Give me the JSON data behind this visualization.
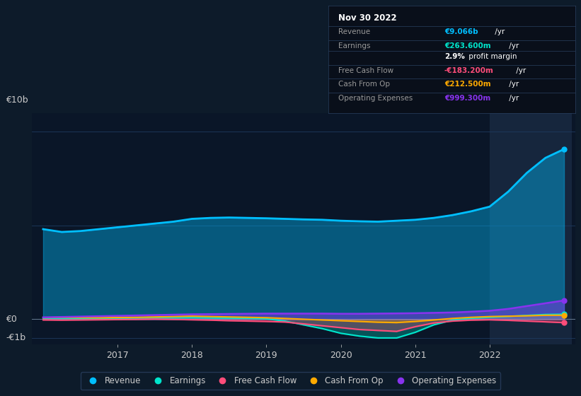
{
  "bg_color": "#0d1b2a",
  "plot_bg_color": "#0a1628",
  "text_color": "#cccccc",
  "ylabel_10b": "€10b",
  "ylabel_0": "€0",
  "ylabel_neg1b": "-€1b",
  "highlight_x_start": 2022.0,
  "highlight_x_end": 2023.1,
  "x_years": [
    2016.0,
    2016.25,
    2016.5,
    2016.75,
    2017.0,
    2017.25,
    2017.5,
    2017.75,
    2018.0,
    2018.25,
    2018.5,
    2018.75,
    2019.0,
    2019.25,
    2019.5,
    2019.75,
    2020.0,
    2020.25,
    2020.5,
    2020.75,
    2021.0,
    2021.25,
    2021.5,
    2021.75,
    2022.0,
    2022.25,
    2022.5,
    2022.75,
    2023.0
  ],
  "revenue": [
    4.8,
    4.65,
    4.7,
    4.8,
    4.9,
    5.0,
    5.1,
    5.2,
    5.35,
    5.4,
    5.42,
    5.4,
    5.38,
    5.35,
    5.32,
    5.3,
    5.25,
    5.22,
    5.2,
    5.25,
    5.3,
    5.4,
    5.55,
    5.75,
    6.0,
    6.8,
    7.8,
    8.6,
    9.066
  ],
  "earnings": [
    0.05,
    0.04,
    0.03,
    0.04,
    0.05,
    0.06,
    0.07,
    0.07,
    0.08,
    0.07,
    0.06,
    0.05,
    0.02,
    -0.1,
    -0.3,
    -0.5,
    -0.75,
    -0.9,
    -1.0,
    -1.0,
    -0.7,
    -0.3,
    -0.05,
    0.05,
    0.1,
    0.15,
    0.2,
    0.25,
    0.2636
  ],
  "free_cash_flow": [
    -0.04,
    -0.05,
    -0.04,
    -0.03,
    -0.02,
    -0.01,
    0.01,
    -0.01,
    -0.03,
    -0.05,
    -0.08,
    -0.1,
    -0.12,
    -0.15,
    -0.25,
    -0.35,
    -0.45,
    -0.55,
    -0.6,
    -0.65,
    -0.4,
    -0.2,
    -0.1,
    -0.05,
    -0.03,
    -0.06,
    -0.1,
    -0.14,
    -0.1832
  ],
  "cash_from_op": [
    0.08,
    0.1,
    0.09,
    0.08,
    0.09,
    0.1,
    0.12,
    0.14,
    0.16,
    0.14,
    0.12,
    0.1,
    0.08,
    0.04,
    0.0,
    -0.04,
    -0.08,
    -0.12,
    -0.16,
    -0.18,
    -0.12,
    -0.04,
    0.04,
    0.1,
    0.14,
    0.16,
    0.18,
    0.21,
    0.2125
  ],
  "operating_expenses": [
    0.1,
    0.12,
    0.14,
    0.16,
    0.18,
    0.2,
    0.22,
    0.24,
    0.26,
    0.27,
    0.28,
    0.29,
    0.3,
    0.3,
    0.3,
    0.3,
    0.29,
    0.29,
    0.3,
    0.31,
    0.32,
    0.34,
    0.36,
    0.4,
    0.45,
    0.55,
    0.7,
    0.85,
    0.9993
  ],
  "revenue_color": "#00bfff",
  "earnings_color": "#00e5cc",
  "free_cash_flow_color": "#ff4d7a",
  "cash_from_op_color": "#ffaa00",
  "operating_expenses_color": "#8833ee",
  "legend_items": [
    "Revenue",
    "Earnings",
    "Free Cash Flow",
    "Cash From Op",
    "Operating Expenses"
  ],
  "legend_colors": [
    "#00bfff",
    "#00e5cc",
    "#ff4d7a",
    "#ffaa00",
    "#8833ee"
  ],
  "info_box": {
    "date": "Nov 30 2022",
    "rows": [
      {
        "label": "Revenue",
        "value": "€9.066b",
        "value_color": "#00bfff"
      },
      {
        "label": "Earnings",
        "value": "€263.600m",
        "value_color": "#00e5cc"
      },
      {
        "label": "",
        "value": "2.9% profit margin",
        "value_color": "#ffffff"
      },
      {
        "label": "Free Cash Flow",
        "value": "-€183.200m",
        "value_color": "#ff4d7a"
      },
      {
        "label": "Cash From Op",
        "value": "€212.500m",
        "value_color": "#ffaa00"
      },
      {
        "label": "Operating Expenses",
        "value": "€999.300m",
        "value_color": "#8833ee"
      }
    ]
  },
  "ylim": [
    -1.35,
    11.0
  ],
  "xlim": [
    2015.85,
    2023.15
  ]
}
